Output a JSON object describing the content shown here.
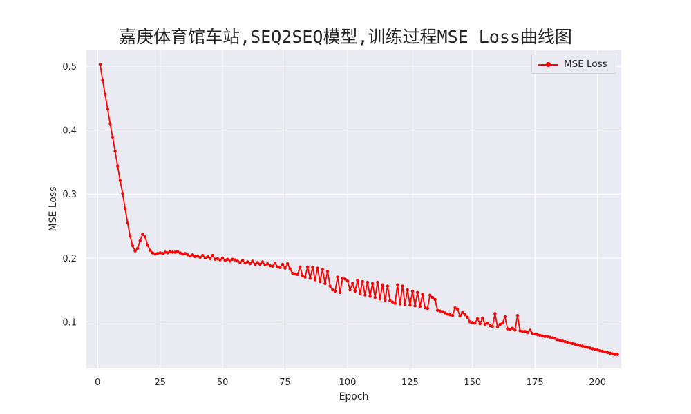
{
  "chart_data": {
    "type": "line",
    "title": "嘉庚体育馆车站,SEQ2SEQ模型,训练过程MSE Loss曲线图",
    "xlabel": "Epoch",
    "ylabel": "MSE Loss",
    "xlim": [
      -4.5,
      209.5
    ],
    "ylim": [
      0.027,
      0.526
    ],
    "xticks": [
      0,
      25,
      50,
      75,
      100,
      125,
      150,
      175,
      200
    ],
    "yticks": [
      0.1,
      0.2,
      0.3,
      0.4,
      0.5
    ],
    "ytick_labels": [
      "0.1",
      "0.2",
      "0.3",
      "0.4",
      "0.5"
    ],
    "grid": true,
    "legend_position": "top-right",
    "series": [
      {
        "name": "MSE Loss",
        "color": "#ff0000",
        "marker": "o",
        "values": [
          0.503,
          0.478,
          0.456,
          0.433,
          0.41,
          0.389,
          0.367,
          0.344,
          0.321,
          0.301,
          0.277,
          0.255,
          0.234,
          0.219,
          0.211,
          0.215,
          0.227,
          0.237,
          0.233,
          0.22,
          0.212,
          0.208,
          0.206,
          0.207,
          0.208,
          0.207,
          0.209,
          0.208,
          0.21,
          0.209,
          0.209,
          0.21,
          0.208,
          0.206,
          0.207,
          0.205,
          0.203,
          0.205,
          0.202,
          0.203,
          0.201,
          0.204,
          0.2,
          0.202,
          0.199,
          0.204,
          0.198,
          0.199,
          0.197,
          0.2,
          0.196,
          0.198,
          0.195,
          0.198,
          0.197,
          0.195,
          0.193,
          0.196,
          0.192,
          0.194,
          0.191,
          0.195,
          0.19,
          0.193,
          0.19,
          0.194,
          0.189,
          0.191,
          0.188,
          0.187,
          0.192,
          0.186,
          0.185,
          0.19,
          0.184,
          0.191,
          0.183,
          0.176,
          0.175,
          0.174,
          0.186,
          0.172,
          0.17,
          0.186,
          0.168,
          0.185,
          0.166,
          0.184,
          0.163,
          0.182,
          0.16,
          0.179,
          0.156,
          0.15,
          0.148,
          0.17,
          0.146,
          0.168,
          0.167,
          0.164,
          0.15,
          0.16,
          0.148,
          0.165,
          0.144,
          0.163,
          0.142,
          0.162,
          0.14,
          0.16,
          0.138,
          0.162,
          0.136,
          0.158,
          0.134,
          0.156,
          0.133,
          0.131,
          0.129,
          0.158,
          0.128,
          0.156,
          0.127,
          0.15,
          0.126,
          0.148,
          0.125,
          0.146,
          0.124,
          0.143,
          0.122,
          0.121,
          0.142,
          0.138,
          0.135,
          0.118,
          0.117,
          0.116,
          0.114,
          0.112,
          0.111,
          0.11,
          0.122,
          0.12,
          0.109,
          0.115,
          0.111,
          0.107,
          0.1,
          0.099,
          0.098,
          0.105,
          0.097,
          0.106,
          0.096,
          0.098,
          0.094,
          0.093,
          0.113,
          0.092,
          0.096,
          0.098,
          0.108,
          0.089,
          0.088,
          0.09,
          0.087,
          0.11,
          0.086,
          0.085,
          0.085,
          0.083,
          0.087,
          0.082,
          0.081,
          0.08,
          0.079,
          0.078,
          0.077,
          0.077,
          0.076,
          0.075,
          0.074,
          0.072,
          0.071,
          0.07,
          0.069,
          0.068,
          0.067,
          0.066,
          0.065,
          0.064,
          0.063,
          0.062,
          0.061,
          0.06,
          0.059,
          0.058,
          0.057,
          0.056,
          0.055,
          0.054,
          0.053,
          0.052,
          0.051,
          0.05,
          0.049,
          0.049
        ]
      }
    ]
  }
}
